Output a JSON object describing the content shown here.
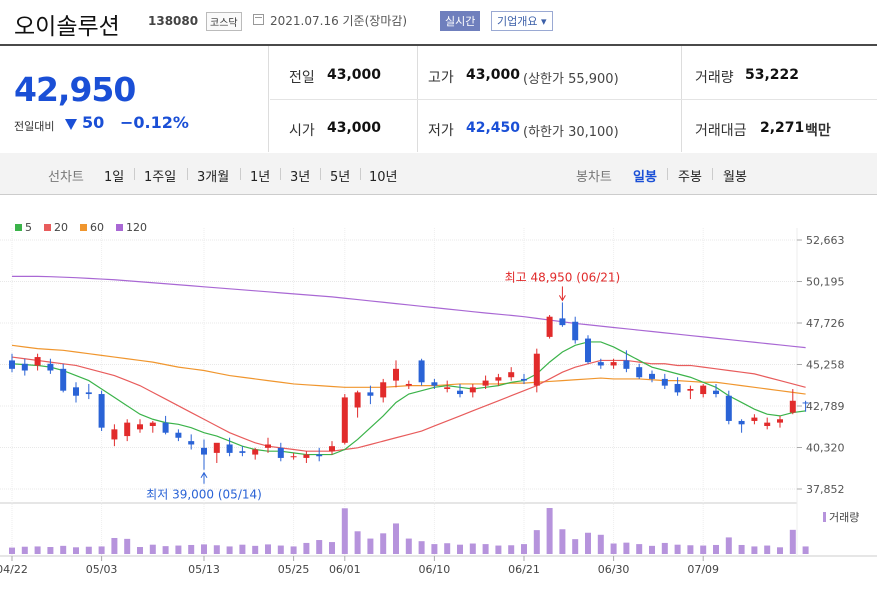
{
  "header": {
    "name": "오이솔루션",
    "code": "138080",
    "market": "코스닥",
    "date": "2021.07.16 기준(장마감)",
    "realtime": "실시간",
    "company": "기업개요 ▾"
  },
  "price": {
    "current": "42,950",
    "diff_label": "전일대비",
    "diff": "50",
    "pct": "−0.12%",
    "prev_label": "전일",
    "prev": "43,000",
    "high_label": "고가",
    "high": "43,000",
    "upper": "(상한가 55,900)",
    "vol_label": "거래량",
    "vol": "53,222",
    "open_label": "시가",
    "open": "43,000",
    "low_label": "저가",
    "low": "42,450",
    "lower": "(하한가 30,100)",
    "amt_label": "거래대금",
    "amt": "2,271",
    "amt_unit": "백만"
  },
  "tabs": {
    "line_label": "선차트",
    "line": [
      "1일",
      "1주일",
      "3개월",
      "1년",
      "3년",
      "5년",
      "10년"
    ],
    "candle_label": "봉차트",
    "candle": [
      "일봉",
      "주봉",
      "월봉"
    ],
    "candle_selected": "일봉"
  },
  "colors": {
    "up": "#e12b2b",
    "down": "#2a63d6",
    "ma5": "#3bb34a",
    "ma20": "#e85c5c",
    "ma60": "#f0962e",
    "ma120": "#a968d4"
  },
  "chart_data": {
    "type": "candlestick",
    "legend": [
      "5",
      "20",
      "60",
      "120"
    ],
    "y_ticks": [
      "52,663",
      "50,195",
      "47,726",
      "45,258",
      "42,789",
      "40,320",
      "37,852"
    ],
    "ylim": [
      37852,
      52663
    ],
    "x_ticks": [
      {
        "label": "04/22",
        "i": 0
      },
      {
        "label": "05/03",
        "i": 7
      },
      {
        "label": "05/13",
        "i": 15
      },
      {
        "label": "05/25",
        "i": 22
      },
      {
        "label": "06/01",
        "i": 26
      },
      {
        "label": "06/10",
        "i": 33
      },
      {
        "label": "06/21",
        "i": 40
      },
      {
        "label": "06/30",
        "i": 47
      },
      {
        "label": "07/09",
        "i": 54
      }
    ],
    "candles": [
      {
        "o": 45500,
        "h": 45900,
        "l": 44800,
        "c": 45000
      },
      {
        "o": 45300,
        "h": 45600,
        "l": 44600,
        "c": 44900
      },
      {
        "o": 45200,
        "h": 45900,
        "l": 44900,
        "c": 45700
      },
      {
        "o": 45300,
        "h": 45600,
        "l": 44700,
        "c": 44900
      },
      {
        "o": 45000,
        "h": 45300,
        "l": 43600,
        "c": 43700
      },
      {
        "o": 43900,
        "h": 44200,
        "l": 43000,
        "c": 43400
      },
      {
        "o": 43600,
        "h": 44100,
        "l": 43200,
        "c": 43500
      },
      {
        "o": 43500,
        "h": 43700,
        "l": 41300,
        "c": 41500
      },
      {
        "o": 40800,
        "h": 41700,
        "l": 40400,
        "c": 41400
      },
      {
        "o": 41000,
        "h": 42000,
        "l": 40700,
        "c": 41800
      },
      {
        "o": 41400,
        "h": 42000,
        "l": 41200,
        "c": 41700
      },
      {
        "o": 41600,
        "h": 41900,
        "l": 41200,
        "c": 41800
      },
      {
        "o": 41800,
        "h": 42200,
        "l": 41100,
        "c": 41200
      },
      {
        "o": 41200,
        "h": 41400,
        "l": 40700,
        "c": 40900
      },
      {
        "o": 40700,
        "h": 41100,
        "l": 40200,
        "c": 40500
      },
      {
        "o": 40300,
        "h": 40800,
        "l": 39000,
        "c": 39900
      },
      {
        "o": 40000,
        "h": 40500,
        "l": 39400,
        "c": 40600
      },
      {
        "o": 40500,
        "h": 40900,
        "l": 39800,
        "c": 40000
      },
      {
        "o": 40100,
        "h": 40400,
        "l": 39800,
        "c": 40000
      },
      {
        "o": 39900,
        "h": 40300,
        "l": 39600,
        "c": 40200
      },
      {
        "o": 40300,
        "h": 40900,
        "l": 40000,
        "c": 40500
      },
      {
        "o": 40300,
        "h": 40600,
        "l": 39500,
        "c": 39700
      },
      {
        "o": 39800,
        "h": 40000,
        "l": 39600,
        "c": 39800
      },
      {
        "o": 39700,
        "h": 40100,
        "l": 39400,
        "c": 39900
      },
      {
        "o": 39900,
        "h": 40300,
        "l": 39500,
        "c": 39800
      },
      {
        "o": 40100,
        "h": 40700,
        "l": 39900,
        "c": 40400
      },
      {
        "o": 40600,
        "h": 43500,
        "l": 40500,
        "c": 43300
      },
      {
        "o": 42700,
        "h": 43700,
        "l": 42100,
        "c": 43600
      },
      {
        "o": 43600,
        "h": 44000,
        "l": 42900,
        "c": 43400
      },
      {
        "o": 43300,
        "h": 44400,
        "l": 43000,
        "c": 44200
      },
      {
        "o": 44300,
        "h": 45500,
        "l": 43900,
        "c": 45000
      },
      {
        "o": 44000,
        "h": 44300,
        "l": 43800,
        "c": 44100
      },
      {
        "o": 45500,
        "h": 45600,
        "l": 44000,
        "c": 44200
      },
      {
        "o": 44200,
        "h": 44400,
        "l": 43800,
        "c": 44000
      },
      {
        "o": 43800,
        "h": 44300,
        "l": 43600,
        "c": 43900
      },
      {
        "o": 43700,
        "h": 44100,
        "l": 43300,
        "c": 43500
      },
      {
        "o": 43600,
        "h": 44100,
        "l": 43300,
        "c": 43900
      },
      {
        "o": 44000,
        "h": 44600,
        "l": 43800,
        "c": 44300
      },
      {
        "o": 44300,
        "h": 44700,
        "l": 44000,
        "c": 44500
      },
      {
        "o": 44500,
        "h": 45100,
        "l": 44300,
        "c": 44800
      },
      {
        "o": 44400,
        "h": 44700,
        "l": 44100,
        "c": 44300
      },
      {
        "o": 44000,
        "h": 46200,
        "l": 43600,
        "c": 45900
      },
      {
        "o": 46900,
        "h": 48200,
        "l": 46800,
        "c": 48100
      },
      {
        "o": 48000,
        "h": 48950,
        "l": 47500,
        "c": 47600
      },
      {
        "o": 47800,
        "h": 48100,
        "l": 46500,
        "c": 46700
      },
      {
        "o": 46800,
        "h": 47000,
        "l": 45300,
        "c": 45400
      },
      {
        "o": 45400,
        "h": 45600,
        "l": 45000,
        "c": 45200
      },
      {
        "o": 45200,
        "h": 45600,
        "l": 45000,
        "c": 45400
      },
      {
        "o": 45500,
        "h": 46100,
        "l": 44800,
        "c": 45000
      },
      {
        "o": 45100,
        "h": 45300,
        "l": 44400,
        "c": 44500
      },
      {
        "o": 44700,
        "h": 44900,
        "l": 44200,
        "c": 44400
      },
      {
        "o": 44400,
        "h": 44700,
        "l": 43800,
        "c": 44000
      },
      {
        "o": 44100,
        "h": 44500,
        "l": 43400,
        "c": 43600
      },
      {
        "o": 43700,
        "h": 44000,
        "l": 43200,
        "c": 43800
      },
      {
        "o": 43500,
        "h": 44100,
        "l": 43300,
        "c": 44000
      },
      {
        "o": 43700,
        "h": 44100,
        "l": 43300,
        "c": 43500
      },
      {
        "o": 43400,
        "h": 43700,
        "l": 41700,
        "c": 41900
      },
      {
        "o": 41900,
        "h": 42000,
        "l": 41200,
        "c": 41700
      },
      {
        "o": 41900,
        "h": 42300,
        "l": 41700,
        "c": 42100
      },
      {
        "o": 41600,
        "h": 42100,
        "l": 41400,
        "c": 41800
      },
      {
        "o": 41800,
        "h": 42200,
        "l": 41500,
        "c": 42000
      },
      {
        "o": 42400,
        "h": 43800,
        "l": 42300,
        "c": 43100
      },
      {
        "o": 43000,
        "h": 43100,
        "l": 42450,
        "c": 42950
      }
    ],
    "ma5": [
      45300,
      45250,
      45200,
      45100,
      44900,
      44600,
      44300,
      43800,
      43300,
      42800,
      42300,
      42000,
      41800,
      41700,
      41500,
      41200,
      41000,
      40700,
      40400,
      40200,
      40100,
      40100,
      40000,
      39900,
      39900,
      39900,
      40200,
      40800,
      41500,
      42200,
      43000,
      43500,
      43700,
      43900,
      44000,
      43900,
      43800,
      43900,
      44000,
      44200,
      44300,
      44700,
      45400,
      46000,
      46400,
      46600,
      46600,
      46300,
      45900,
      45500,
      45100,
      44900,
      44700,
      44500,
      44200,
      43900,
      43400,
      43000,
      42600,
      42300,
      42200,
      42400,
      42500
    ],
    "ma20": [
      45700,
      45600,
      45500,
      45400,
      45300,
      45200,
      45000,
      44800,
      44600,
      44300,
      44000,
      43600,
      43200,
      42800,
      42400,
      42000,
      41600,
      41200,
      40900,
      40600,
      40400,
      40300,
      40200,
      40100,
      40100,
      40100,
      40200,
      40300,
      40500,
      40700,
      40900,
      41100,
      41300,
      41600,
      41900,
      42200,
      42500,
      42800,
      43100,
      43400,
      43700,
      44000,
      44400,
      44800,
      45100,
      45300,
      45500,
      45500,
      45500,
      45400,
      45300,
      45300,
      45200,
      45200,
      45100,
      45000,
      44900,
      44800,
      44700,
      44500,
      44300,
      44100,
      43900
    ],
    "ma60": [
      46400,
      46300,
      46200,
      46150,
      46100,
      46000,
      45900,
      45800,
      45700,
      45600,
      45500,
      45400,
      45250,
      45100,
      45000,
      44900,
      44750,
      44600,
      44500,
      44400,
      44300,
      44200,
      44100,
      44050,
      44000,
      43950,
      43900,
      43900,
      43900,
      43900,
      43950,
      44000,
      44000,
      44000,
      44050,
      44100,
      44100,
      44100,
      44100,
      44150,
      44150,
      44200,
      44250,
      44300,
      44350,
      44400,
      44450,
      44400,
      44400,
      44400,
      44350,
      44300,
      44300,
      44250,
      44200,
      44200,
      44100,
      44000,
      43900,
      43800,
      43700,
      43600,
      43500
    ],
    "ma120": [
      50500,
      50500,
      50500,
      50480,
      50450,
      50420,
      50380,
      50340,
      50300,
      50240,
      50180,
      50120,
      50060,
      50000,
      49940,
      49880,
      49820,
      49760,
      49700,
      49640,
      49580,
      49520,
      49460,
      49400,
      49340,
      49280,
      49200,
      49120,
      49040,
      48960,
      48880,
      48800,
      48720,
      48640,
      48560,
      48480,
      48400,
      48320,
      48250,
      48180,
      48100,
      48000,
      47900,
      47800,
      47700,
      47620,
      47540,
      47460,
      47380,
      47300,
      47220,
      47140,
      47060,
      46980,
      46900,
      46820,
      46740,
      46660,
      46580,
      46500,
      46420,
      46340,
      46260
    ],
    "volume": [
      2.2,
      2.5,
      2.6,
      2.4,
      2.8,
      2.3,
      2.5,
      2.6,
      5.5,
      5.2,
      2.4,
      3.2,
      2.7,
      2.9,
      3.1,
      3.3,
      3.0,
      2.6,
      3.2,
      2.8,
      3.3,
      2.9,
      2.6,
      3.8,
      4.8,
      4.1,
      15.7,
      7.8,
      5.3,
      7.1,
      10.5,
      5.3,
      4.4,
      3.4,
      3.7,
      3.2,
      3.6,
      3.4,
      2.9,
      3.0,
      3.4,
      8.2,
      15.8,
      8.5,
      5.1,
      7.3,
      6.6,
      3.6,
      3.9,
      3.4,
      2.8,
      3.8,
      3.2,
      3.0,
      2.9,
      3.1,
      5.7,
      3.1,
      2.6,
      2.9,
      2.3,
      8.3,
      2.6
    ],
    "annotations": [
      {
        "text": "최고 48,950 (06/21)",
        "i": 43
      },
      {
        "text": "최저 39,000 (05/14)",
        "i": 15
      }
    ],
    "volume_label": "거래량"
  }
}
